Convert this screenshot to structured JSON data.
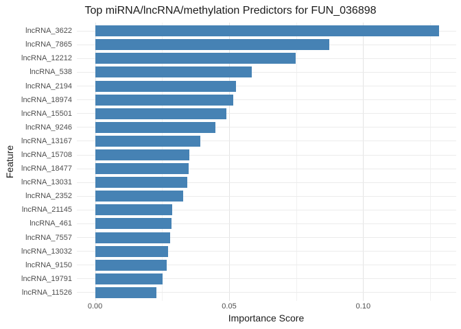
{
  "chart_data": {
    "type": "bar",
    "orientation": "horizontal",
    "title": "Top miRNA/lncRNA/methylation Predictors for FUN_036898",
    "xlabel": "Importance Score",
    "ylabel": "Feature",
    "categories": [
      "lncRNA_3622",
      "lncRNA_7865",
      "lncRNA_12212",
      "lncRNA_538",
      "lncRNA_2194",
      "lncRNA_18974",
      "lncRNA_15501",
      "lncRNA_9246",
      "lncRNA_13167",
      "lncRNA_15708",
      "lncRNA_18477",
      "lncRNA_13031",
      "lncRNA_2352",
      "lncRNA_21145",
      "lncRNA_461",
      "lncRNA_7557",
      "lncRNA_13032",
      "lncRNA_9150",
      "lncRNA_19791",
      "lncRNA_11526"
    ],
    "values": [
      0.1283,
      0.0874,
      0.0749,
      0.0585,
      0.0526,
      0.0515,
      0.0489,
      0.0449,
      0.0393,
      0.0352,
      0.035,
      0.0343,
      0.0329,
      0.0287,
      0.0285,
      0.028,
      0.0273,
      0.0266,
      0.0253,
      0.0228
    ],
    "xlim": [
      -0.0068,
      0.1347
    ],
    "x_major_ticks": [
      {
        "value": 0.0,
        "label": "0.00"
      },
      {
        "value": 0.05,
        "label": "0.05"
      },
      {
        "value": 0.1,
        "label": "0.10"
      }
    ],
    "x_minor_ticks": [
      0.025,
      0.075,
      0.125
    ],
    "grid": true,
    "legend": false,
    "colors": {
      "bar": "#4682B4",
      "grid_major": "#e3e3e3",
      "grid_minor": "#f1f1f1",
      "grid_row": "#ebebeb",
      "text_dark": "#1a1a1a",
      "text_tick": "#4d4d4d",
      "background": "#ffffff"
    }
  }
}
